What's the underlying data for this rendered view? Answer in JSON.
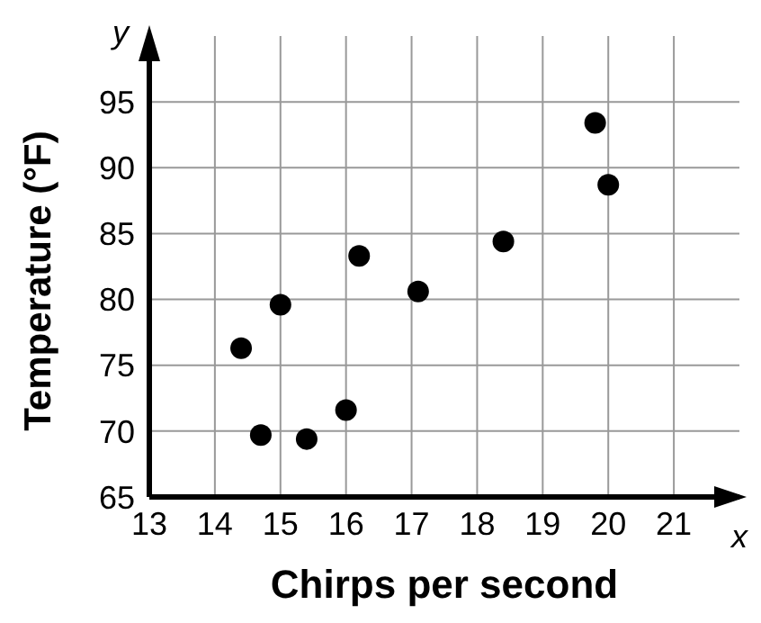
{
  "chart_data": {
    "type": "scatter",
    "xlabel": "Chirps per second",
    "ylabel": "Temperature (°F)",
    "x": [
      14.4,
      14.7,
      15.0,
      15.4,
      16.0,
      16.2,
      17.1,
      18.4,
      19.8,
      20.0
    ],
    "values": [
      76.3,
      69.7,
      79.6,
      69.4,
      71.6,
      83.3,
      80.6,
      84.4,
      93.4,
      88.7
    ],
    "color": "#000000",
    "marker": "circle",
    "xlim": [
      13,
      22
    ],
    "xticks": [
      13,
      14,
      15,
      16,
      17,
      18,
      19,
      20,
      21
    ],
    "ylim": [
      65,
      100
    ],
    "yticks": [
      65,
      70,
      75,
      80,
      85,
      90,
      95
    ],
    "grid": true,
    "legend": false,
    "annotations": [
      "x",
      "y"
    ]
  }
}
